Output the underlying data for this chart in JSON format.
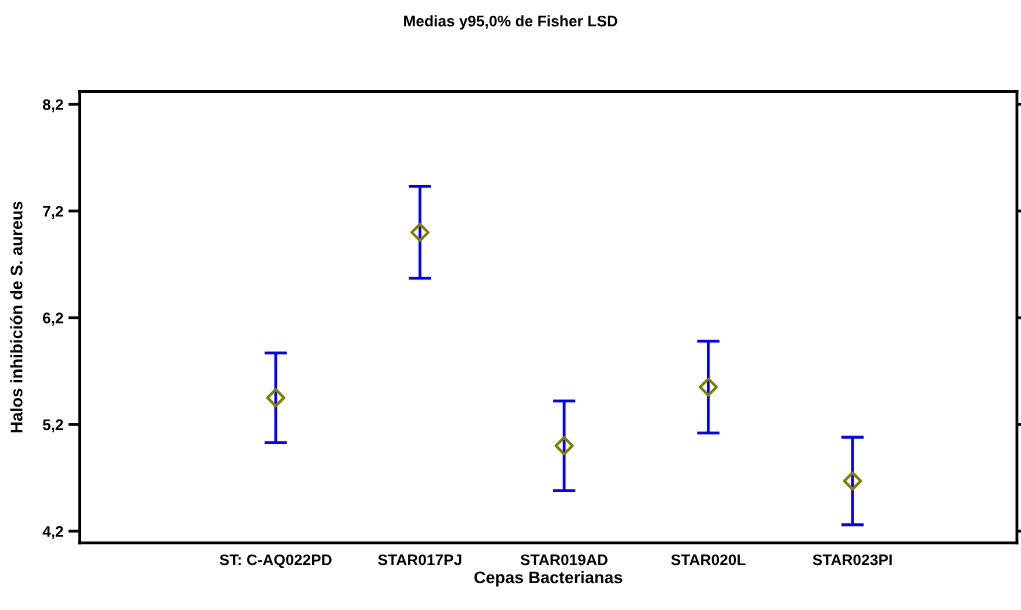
{
  "chart_data": {
    "type": "scatter",
    "title": "Medias y95,0% de Fisher LSD",
    "xlabel": "Cepas Bacterianas",
    "ylabel": "Halos inhibición de S. aureus",
    "categories": [
      "ST: C-AQ022PD",
      "STAR017PJ",
      "STAR019AD",
      "STAR020L",
      "STAR023PI"
    ],
    "series": [
      {
        "color": "#808000",
        "values": [
          5.45,
          7.0,
          5.0,
          5.55,
          4.67
        ],
        "errors": [
          0.42,
          0.43,
          0.42,
          0.43,
          0.41
        ]
      }
    ],
    "ylim": [
      4.09,
      8.32
    ],
    "yticks": [
      {
        "value": 4.2,
        "label": "4,2"
      },
      {
        "value": 5.2,
        "label": "5,2"
      },
      {
        "value": 6.2,
        "label": "6,2"
      },
      {
        "value": 7.2,
        "label": "7,2"
      },
      {
        "value": 8.2,
        "label": "8,2"
      }
    ],
    "marker": "diamond",
    "grid": false,
    "legend": false
  }
}
